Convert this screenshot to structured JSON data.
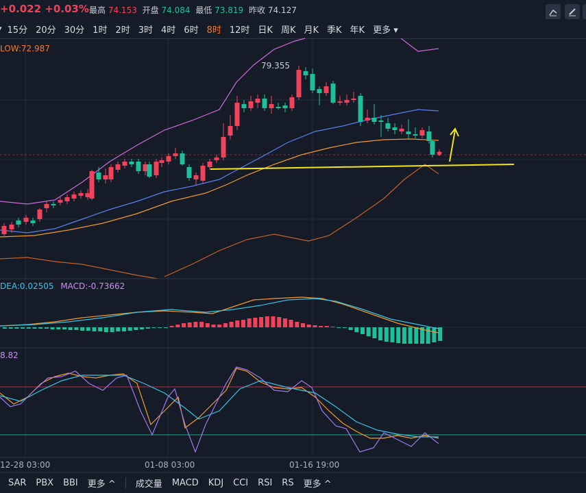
{
  "header": {
    "change": "+0.022",
    "change_pct": "+0.03%",
    "high_label": "最高",
    "high": "74.153",
    "open_label": "开盘",
    "open": "74.084",
    "low_label": "最低",
    "low": "73.819",
    "prev_label": "昨收",
    "prev": "74.127",
    "tools": [
      "draw-line-icon",
      "edit-icon",
      "settings-icon"
    ]
  },
  "timeframes": [
    {
      "label": "15分"
    },
    {
      "label": "20分"
    },
    {
      "label": "30分"
    },
    {
      "label": "1时"
    },
    {
      "label": "2时"
    },
    {
      "label": "3时"
    },
    {
      "label": "4时"
    },
    {
      "label": "6时"
    },
    {
      "label": "8时",
      "active": true
    },
    {
      "label": "12时"
    },
    {
      "label": "日K"
    },
    {
      "label": "周K"
    },
    {
      "label": "月K"
    },
    {
      "label": "季K"
    },
    {
      "label": "年K"
    },
    {
      "label": "更多"
    }
  ],
  "main_panel": {
    "indicator_text": "LOW:72.987",
    "peak_annotation": "79.355"
  },
  "macd_panel": {
    "dea_text": "DEA:0.02505",
    "macd_text": "MACD:-0.73662"
  },
  "kdj_panel": {
    "value_text": "8.82"
  },
  "x_axis": {
    "labels": [
      "12-28 03:00",
      "01-08 03:00",
      "01-16 19:00"
    ]
  },
  "bottom_bar": {
    "left_items": [
      "SAR",
      "PBX",
      "BBI",
      "更多 ^"
    ],
    "right_items": [
      "成交量",
      "MACD",
      "KDJ",
      "CCI",
      "RSI",
      "RS",
      "更多 ^"
    ]
  },
  "colors": {
    "up": "#f2425b",
    "down": "#1fbf9a",
    "background": "#151c28",
    "accent": "#f5792a",
    "boll_upper": "#d06ad9",
    "boll_mid": "#5c7ef0",
    "ma": "#f59a2a",
    "trendline": "#f5e51a"
  },
  "chart_data": {
    "type": "candlestick",
    "x_axis_labels": [
      "12-28 03:00",
      "01-08 03:00",
      "01-16 19:00"
    ],
    "high_annotation": 79.355,
    "last_high": 74.153,
    "last_open": 74.084,
    "last_low": 73.819,
    "prev_close": 74.127,
    "panels": [
      "price with bollinger bands",
      "MACD",
      "KDJ"
    ]
  }
}
